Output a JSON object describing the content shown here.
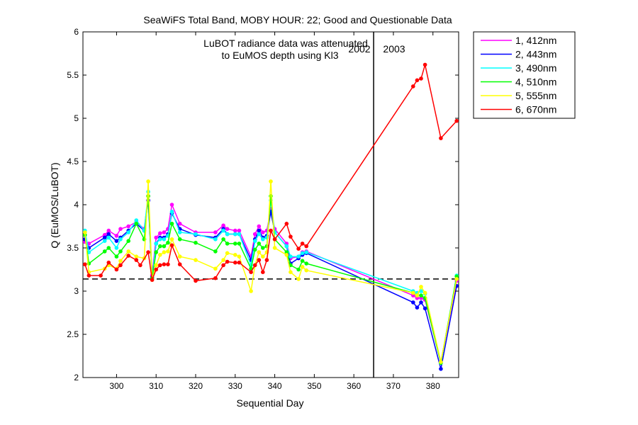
{
  "chart_data": {
    "type": "line",
    "title": "SeaWiFS Total Band,  MOBY HOUR: 22;  Good and Questionable Data",
    "xlabel": "Sequential Day",
    "ylabel": "Q (EuMOS/LuBOT)",
    "xlim": [
      291.5,
      386.5
    ],
    "ylim": [
      2,
      6
    ],
    "xticks": [
      300,
      310,
      320,
      330,
      340,
      350,
      360,
      370,
      380
    ],
    "yticks": [
      2,
      2.5,
      3,
      3.5,
      4,
      4.5,
      5,
      5.5,
      6
    ],
    "grid": false,
    "legend_position": "outside-top-right",
    "annotations": {
      "note_line1": "LuBOT radiance data was attenuated",
      "note_line2": "to EuMOS depth using Kl3",
      "year_left": "2002",
      "year_right": "2003",
      "year_divider_x": 365,
      "reference_y": 3.14
    },
    "series": [
      {
        "name": "1, 412nm",
        "color": "#ff00ff",
        "x": [
          292,
          293,
          297,
          298,
          300,
          301,
          303,
          305,
          307,
          308,
          309,
          310,
          311,
          312,
          313,
          314,
          316,
          320,
          325,
          327,
          328,
          330,
          331,
          334,
          335,
          336,
          337,
          338,
          339,
          340,
          343,
          344,
          346,
          347,
          348,
          375,
          376,
          377,
          378,
          382,
          386
        ],
        "y": [
          3.57,
          3.55,
          3.65,
          3.7,
          3.64,
          3.72,
          3.75,
          3.8,
          3.72,
          4.1,
          3.18,
          3.62,
          3.67,
          3.68,
          3.72,
          4.0,
          3.78,
          3.68,
          3.68,
          3.76,
          3.72,
          3.7,
          3.7,
          3.4,
          3.66,
          3.75,
          3.68,
          3.7,
          3.95,
          3.72,
          3.55,
          3.38,
          3.4,
          3.45,
          3.46,
          2.95,
          2.92,
          2.92,
          2.9,
          2.18,
          3.12
        ]
      },
      {
        "name": "2, 443nm",
        "color": "#0000ff",
        "x": [
          292,
          293,
          297,
          298,
          300,
          301,
          303,
          305,
          307,
          308,
          309,
          310,
          311,
          312,
          313,
          314,
          316,
          320,
          325,
          327,
          328,
          330,
          331,
          334,
          335,
          336,
          337,
          338,
          339,
          340,
          343,
          344,
          346,
          347,
          348,
          375,
          376,
          377,
          378,
          382,
          386
        ],
        "y": [
          3.6,
          3.5,
          3.62,
          3.66,
          3.58,
          3.62,
          3.7,
          3.78,
          3.7,
          4.05,
          3.16,
          3.55,
          3.62,
          3.62,
          3.66,
          3.9,
          3.72,
          3.65,
          3.62,
          3.72,
          3.66,
          3.66,
          3.66,
          3.36,
          3.6,
          3.7,
          3.62,
          3.64,
          3.92,
          3.68,
          3.52,
          3.32,
          3.38,
          3.42,
          3.44,
          2.87,
          2.81,
          2.87,
          2.8,
          2.1,
          3.06
        ]
      },
      {
        "name": "3, 490nm",
        "color": "#00ffff",
        "x": [
          292,
          293,
          297,
          298,
          300,
          301,
          303,
          305,
          307,
          308,
          309,
          310,
          311,
          312,
          313,
          314,
          316,
          320,
          325,
          327,
          328,
          330,
          331,
          334,
          335,
          336,
          337,
          338,
          339,
          340,
          343,
          344,
          346,
          347,
          348,
          375,
          376,
          377,
          378,
          382,
          386
        ],
        "y": [
          3.7,
          3.45,
          3.58,
          3.62,
          3.5,
          3.6,
          3.68,
          3.82,
          3.7,
          4.15,
          3.15,
          3.55,
          3.6,
          3.6,
          3.64,
          3.92,
          3.68,
          3.66,
          3.6,
          3.7,
          3.66,
          3.66,
          3.66,
          3.3,
          3.58,
          3.66,
          3.6,
          3.62,
          4.05,
          3.68,
          3.52,
          3.4,
          3.4,
          3.44,
          3.45,
          3.0,
          2.98,
          3.0,
          2.97,
          2.17,
          3.18
        ]
      },
      {
        "name": "4, 510nm",
        "color": "#00ff00",
        "x": [
          292,
          293,
          297,
          298,
          300,
          301,
          303,
          305,
          307,
          308,
          309,
          310,
          311,
          312,
          313,
          314,
          316,
          320,
          325,
          327,
          328,
          330,
          331,
          334,
          335,
          336,
          337,
          338,
          339,
          340,
          343,
          344,
          346,
          347,
          348,
          375,
          376,
          377,
          378,
          382,
          386
        ],
        "y": [
          3.65,
          3.32,
          3.46,
          3.5,
          3.4,
          3.46,
          3.58,
          3.78,
          3.6,
          4.1,
          3.15,
          3.45,
          3.52,
          3.52,
          3.56,
          3.78,
          3.6,
          3.56,
          3.46,
          3.6,
          3.55,
          3.55,
          3.55,
          3.26,
          3.48,
          3.55,
          3.5,
          3.52,
          4.1,
          3.6,
          3.45,
          3.3,
          3.25,
          3.35,
          3.32,
          2.98,
          2.95,
          2.95,
          2.92,
          2.17,
          3.17
        ]
      },
      {
        "name": "5, 555nm",
        "color": "#ffff00",
        "x": [
          292,
          293,
          297,
          298,
          300,
          301,
          303,
          305,
          307,
          308,
          309,
          310,
          311,
          312,
          313,
          314,
          316,
          320,
          325,
          327,
          328,
          330,
          331,
          334,
          335,
          336,
          337,
          338,
          339,
          340,
          343,
          344,
          346,
          347,
          348,
          375,
          376,
          377,
          378,
          382,
          386
        ],
        "y": [
          3.68,
          3.22,
          3.26,
          3.3,
          3.26,
          3.35,
          3.46,
          3.4,
          3.38,
          4.27,
          3.13,
          3.3,
          3.42,
          3.45,
          3.46,
          3.6,
          3.4,
          3.36,
          3.26,
          3.36,
          3.44,
          3.42,
          3.4,
          3.0,
          3.3,
          3.45,
          3.4,
          3.45,
          4.27,
          3.5,
          3.42,
          3.22,
          3.14,
          3.28,
          3.24,
          2.98,
          2.95,
          3.05,
          2.98,
          2.18,
          3.14
        ]
      },
      {
        "name": "6, 670nm",
        "color": "#ff0000",
        "x": [
          292,
          293,
          296,
          298,
          300,
          301,
          303,
          305,
          306,
          308,
          309,
          310,
          311,
          312,
          313,
          314,
          316,
          320,
          325,
          327,
          328,
          330,
          331,
          334,
          335,
          336,
          337,
          338,
          339,
          340,
          343,
          344,
          346,
          347,
          348,
          375,
          376,
          377,
          378,
          382,
          386
        ],
        "y": [
          3.31,
          3.18,
          3.18,
          3.33,
          3.25,
          3.3,
          3.41,
          3.36,
          3.3,
          3.45,
          3.13,
          3.25,
          3.3,
          3.31,
          3.31,
          3.53,
          3.31,
          3.12,
          3.15,
          3.3,
          3.34,
          3.33,
          3.33,
          3.22,
          3.3,
          3.36,
          3.22,
          3.36,
          3.7,
          3.6,
          3.78,
          3.63,
          3.49,
          3.55,
          3.52,
          5.37,
          5.44,
          5.46,
          5.62,
          4.77,
          4.97
        ]
      }
    ]
  }
}
